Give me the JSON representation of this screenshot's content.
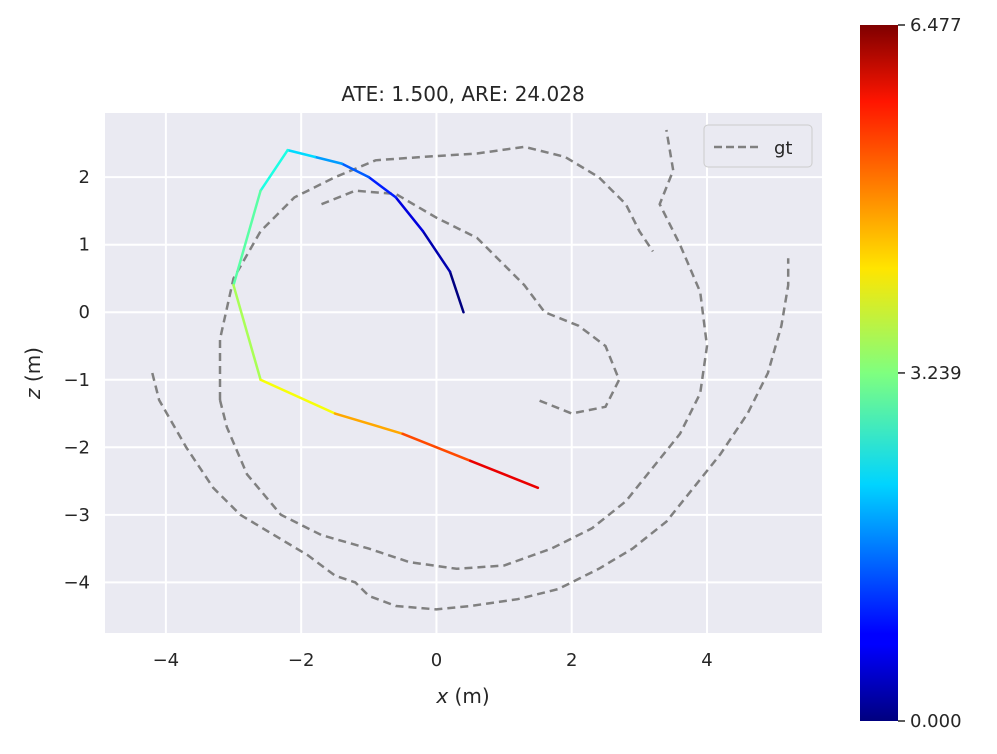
{
  "chart_data": {
    "type": "line",
    "title": "ATE: 1.500, ARE: 24.028",
    "xlabel_var": "x",
    "xlabel_unit": " (m)",
    "ylabel_var": "z",
    "ylabel_unit": " (m)",
    "xlim": [
      -4.9,
      5.7
    ],
    "ylim": [
      -4.75,
      2.95
    ],
    "xticks": [
      -4,
      -2,
      0,
      2,
      4
    ],
    "yticks": [
      -4,
      -3,
      -2,
      -1,
      0,
      1,
      2
    ],
    "xtick_labels": [
      "−4",
      "−2",
      "0",
      "2",
      "4"
    ],
    "ytick_labels": [
      "−4",
      "−3",
      "−2",
      "−1",
      "0",
      "1",
      "2"
    ],
    "grid": true,
    "background_color": "#e8e8f0",
    "legend": {
      "position": "top-right",
      "entries": [
        {
          "label": "gt",
          "style": "dashed",
          "color": "#808080"
        }
      ]
    },
    "colorbar": {
      "colormap": "jet",
      "min": 0.0,
      "max": 6.477,
      "tick_values": [
        6.477,
        3.239,
        0.0
      ],
      "tick_labels": [
        "6.477",
        "3.239",
        "0.000"
      ]
    },
    "series": [
      {
        "name": "gt",
        "style": "dashed",
        "color": "#808080",
        "x": [
          -4.2,
          -4.1,
          -3.7,
          -3.3,
          -2.9,
          -2.4,
          -1.9,
          -1.5,
          -1.2,
          -1.0,
          -0.6,
          0.0,
          0.5,
          1.2,
          1.8,
          2.4,
          2.9,
          3.4,
          3.8,
          4.2,
          4.6,
          4.9,
          5.1,
          5.2,
          5.2
        ],
        "y": [
          -0.9,
          -1.3,
          -2.0,
          -2.6,
          -3.0,
          -3.3,
          -3.6,
          -3.9,
          -4.0,
          -4.2,
          -4.35,
          -4.4,
          -4.35,
          -4.25,
          -4.1,
          -3.8,
          -3.5,
          -3.1,
          -2.6,
          -2.1,
          -1.5,
          -0.9,
          -0.2,
          0.4,
          0.8
        ]
      },
      {
        "name": "gt",
        "style": "dashed",
        "color": "#808080",
        "x": [
          -3.2,
          -3.1,
          -2.8,
          -2.3,
          -1.7,
          -1.0,
          -0.4,
          0.3,
          1.0,
          1.7,
          2.3,
          2.8,
          3.2,
          3.6,
          3.9,
          4.0,
          3.9,
          3.6,
          3.3,
          3.5,
          3.4
        ],
        "y": [
          -1.3,
          -1.7,
          -2.4,
          -3.0,
          -3.3,
          -3.5,
          -3.7,
          -3.8,
          -3.75,
          -3.5,
          -3.2,
          -2.8,
          -2.3,
          -1.8,
          -1.2,
          -0.5,
          0.3,
          1.0,
          1.6,
          2.1,
          2.7
        ]
      },
      {
        "name": "gt",
        "style": "dashed",
        "color": "#808080",
        "x": [
          -3.2,
          -3.2,
          -3.0,
          -2.6,
          -2.1,
          -1.5,
          -0.9,
          -0.2,
          0.6,
          1.3,
          1.9,
          2.4,
          2.8,
          3.0,
          3.2
        ],
        "y": [
          -1.3,
          -0.4,
          0.5,
          1.2,
          1.7,
          2.0,
          2.25,
          2.3,
          2.35,
          2.45,
          2.3,
          2.0,
          1.6,
          1.2,
          0.9
        ]
      },
      {
        "name": "gt",
        "style": "dashed",
        "color": "#808080",
        "x": [
          -1.7,
          -1.2,
          -0.6,
          0.0,
          0.6,
          1.0,
          1.3,
          1.6,
          2.1,
          2.5,
          2.7,
          2.5,
          2.0,
          1.5
        ],
        "y": [
          1.6,
          1.8,
          1.75,
          1.4,
          1.1,
          0.7,
          0.4,
          0.0,
          -0.2,
          -0.5,
          -1.0,
          -1.4,
          -1.5,
          -1.3
        ]
      },
      {
        "name": "trajectory",
        "style": "solid",
        "colormap_values": [
          0.0,
          0.3,
          0.6,
          1.0,
          1.4,
          1.8,
          2.2,
          2.6,
          3.0,
          3.5,
          4.0,
          4.6,
          5.2,
          5.8,
          6.3
        ],
        "x": [
          0.4,
          0.2,
          -0.2,
          -0.6,
          -1.0,
          -1.4,
          -1.8,
          -2.2,
          -2.6,
          -3.0,
          -2.6,
          -1.5,
          -0.5,
          0.5,
          1.5
        ],
        "y": [
          0.0,
          0.6,
          1.2,
          1.7,
          2.0,
          2.2,
          2.3,
          2.4,
          1.8,
          0.4,
          -1.0,
          -1.5,
          -1.8,
          -2.2,
          -2.6
        ]
      }
    ]
  }
}
